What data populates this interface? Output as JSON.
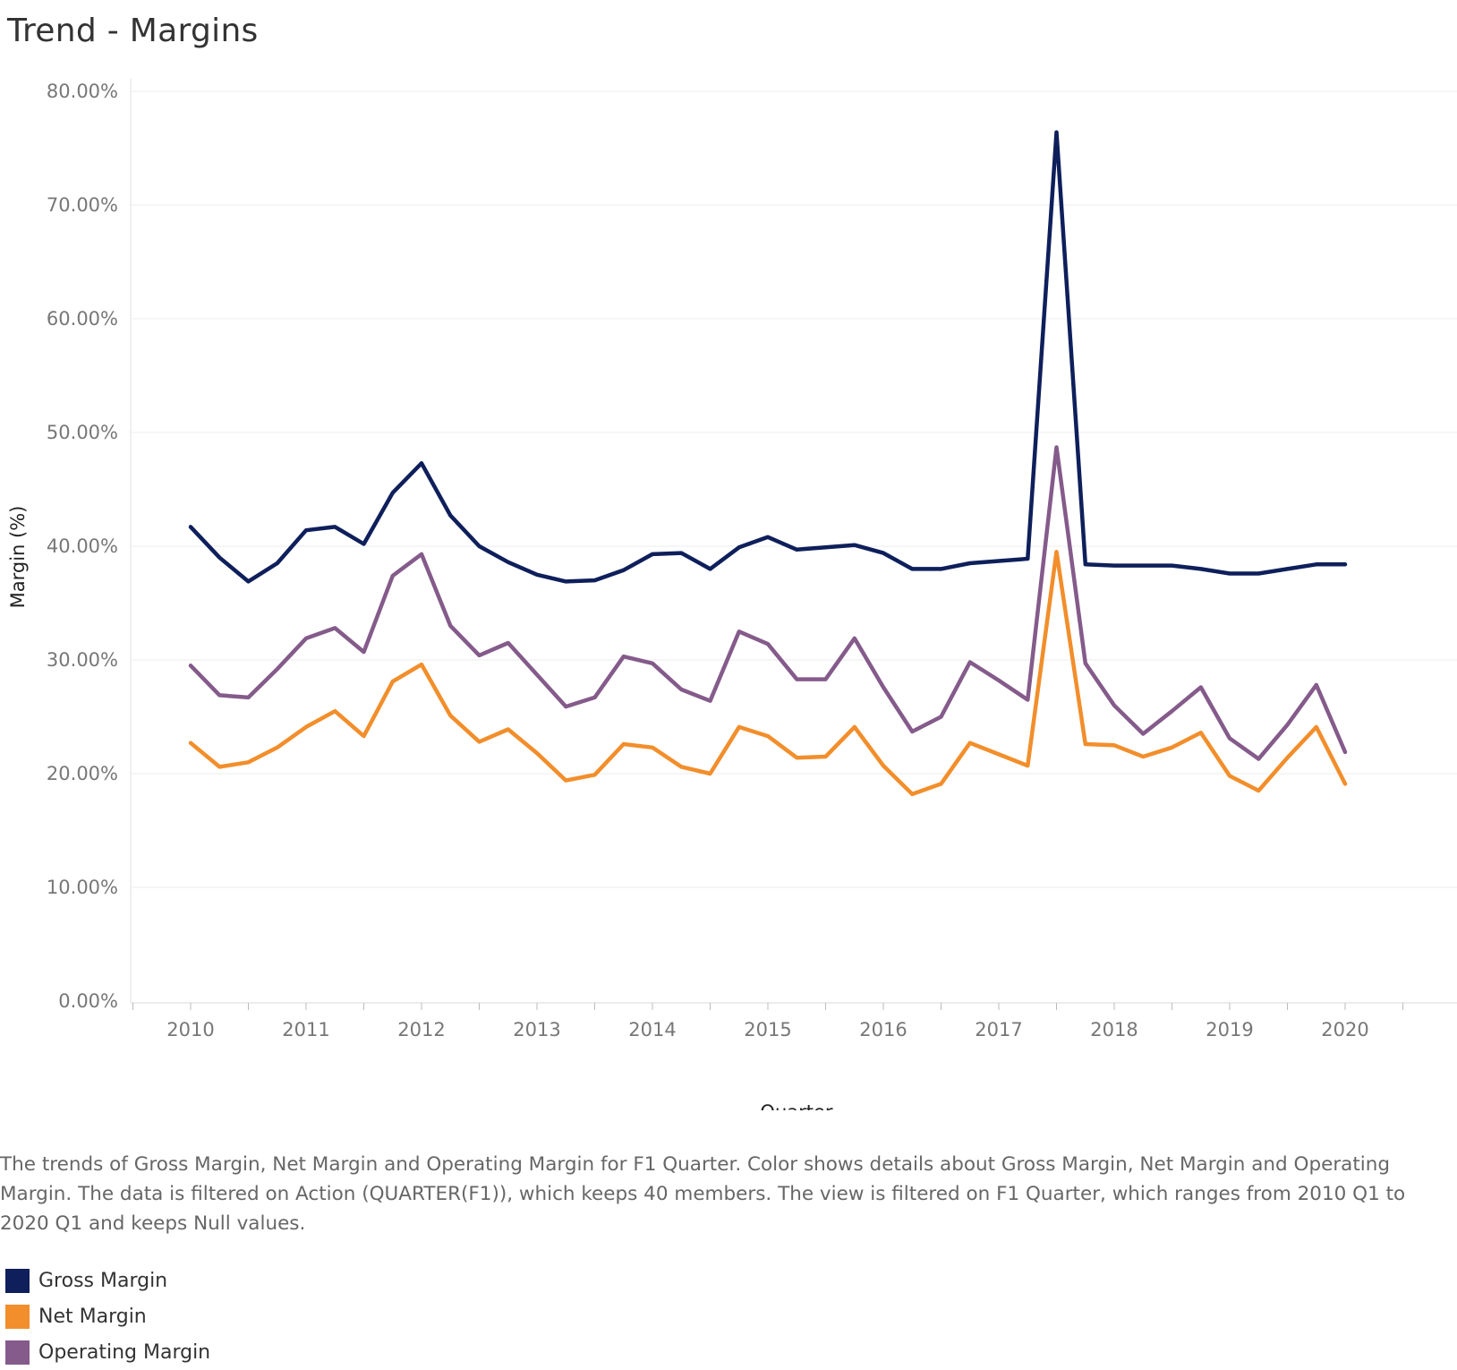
{
  "title": "Trend - Margins",
  "caption": "The trends of Gross Margin, Net Margin and Operating Margin for F1 Quarter.  Color shows details about Gross Margin, Net Margin and Operating Margin. The data is filtered on Action (QUARTER(F1)), which keeps 40 members. The view is filtered on F1 Quarter, which ranges from 2010 Q1 to 2020 Q1 and keeps Null values.",
  "legend": [
    {
      "label": "Gross Margin",
      "color": "#0e1f5b"
    },
    {
      "label": "Net Margin",
      "color": "#f28e2b"
    },
    {
      "label": "Operating Margin",
      "color": "#845b8a"
    }
  ],
  "chart_data": {
    "type": "line",
    "xlabel": "Quarter",
    "ylabel": "Margin (%)",
    "ylim": [
      0,
      80
    ],
    "yticks": [
      "0.00%",
      "10.00%",
      "20.00%",
      "30.00%",
      "40.00%",
      "50.00%",
      "60.00%",
      "70.00%",
      "80.00%"
    ],
    "xticks": [
      "2010",
      "2011",
      "2012",
      "2013",
      "2014",
      "2015",
      "2016",
      "2017",
      "2018",
      "2019",
      "2020"
    ],
    "grid": true,
    "legend_position": "bottom-left",
    "x": [
      "2010 Q1",
      "2010 Q2",
      "2010 Q3",
      "2010 Q4",
      "2011 Q1",
      "2011 Q2",
      "2011 Q3",
      "2011 Q4",
      "2012 Q1",
      "2012 Q2",
      "2012 Q3",
      "2012 Q4",
      "2013 Q1",
      "2013 Q2",
      "2013 Q3",
      "2013 Q4",
      "2014 Q1",
      "2014 Q2",
      "2014 Q3",
      "2014 Q4",
      "2015 Q1",
      "2015 Q2",
      "2015 Q3",
      "2015 Q4",
      "2016 Q1",
      "2016 Q2",
      "2016 Q3",
      "2016 Q4",
      "2017 Q1",
      "2017 Q2",
      "2017 Q3",
      "2017 Q4",
      "2018 Q1",
      "2018 Q2",
      "2018 Q3",
      "2018 Q4",
      "2019 Q1",
      "2019 Q2",
      "2019 Q3",
      "2019 Q4",
      "2020 Q1"
    ],
    "series": [
      {
        "name": "Gross Margin",
        "color": "#0e1f5b",
        "values": [
          41.7,
          39.0,
          36.9,
          38.5,
          41.4,
          41.7,
          40.2,
          44.7,
          47.3,
          42.7,
          40.0,
          38.6,
          37.5,
          36.9,
          37.0,
          37.9,
          39.3,
          39.4,
          38.0,
          39.9,
          40.8,
          39.7,
          39.9,
          40.1,
          39.4,
          38.0,
          38.0,
          38.5,
          38.7,
          38.9,
          76.4,
          38.4,
          38.3,
          38.3,
          38.3,
          38.0,
          37.6,
          37.6,
          38.0,
          38.4,
          38.4
        ]
      },
      {
        "name": "Net Margin",
        "color": "#f28e2b",
        "values": [
          22.7,
          20.6,
          21.0,
          22.3,
          24.1,
          25.5,
          23.3,
          28.1,
          29.6,
          25.1,
          22.8,
          23.9,
          21.8,
          19.4,
          19.9,
          22.6,
          22.3,
          20.6,
          20.0,
          24.1,
          23.3,
          21.4,
          21.5,
          24.1,
          20.7,
          18.2,
          19.1,
          22.7,
          21.7,
          20.7,
          39.5,
          22.6,
          22.5,
          21.5,
          22.3,
          23.6,
          19.8,
          18.5,
          21.4,
          24.1,
          19.1
        ]
      },
      {
        "name": "Operating Margin",
        "color": "#845b8a",
        "values": [
          29.5,
          26.9,
          26.7,
          29.2,
          31.9,
          32.8,
          30.7,
          37.4,
          39.3,
          33.0,
          30.4,
          31.5,
          28.7,
          25.9,
          26.7,
          30.3,
          29.7,
          27.4,
          26.4,
          32.5,
          31.4,
          28.3,
          28.3,
          31.9,
          27.6,
          23.7,
          25.0,
          29.8,
          28.2,
          26.5,
          48.7,
          29.7,
          26.0,
          23.5,
          25.5,
          27.6,
          23.1,
          21.3,
          24.3,
          27.8,
          21.9
        ]
      }
    ]
  }
}
